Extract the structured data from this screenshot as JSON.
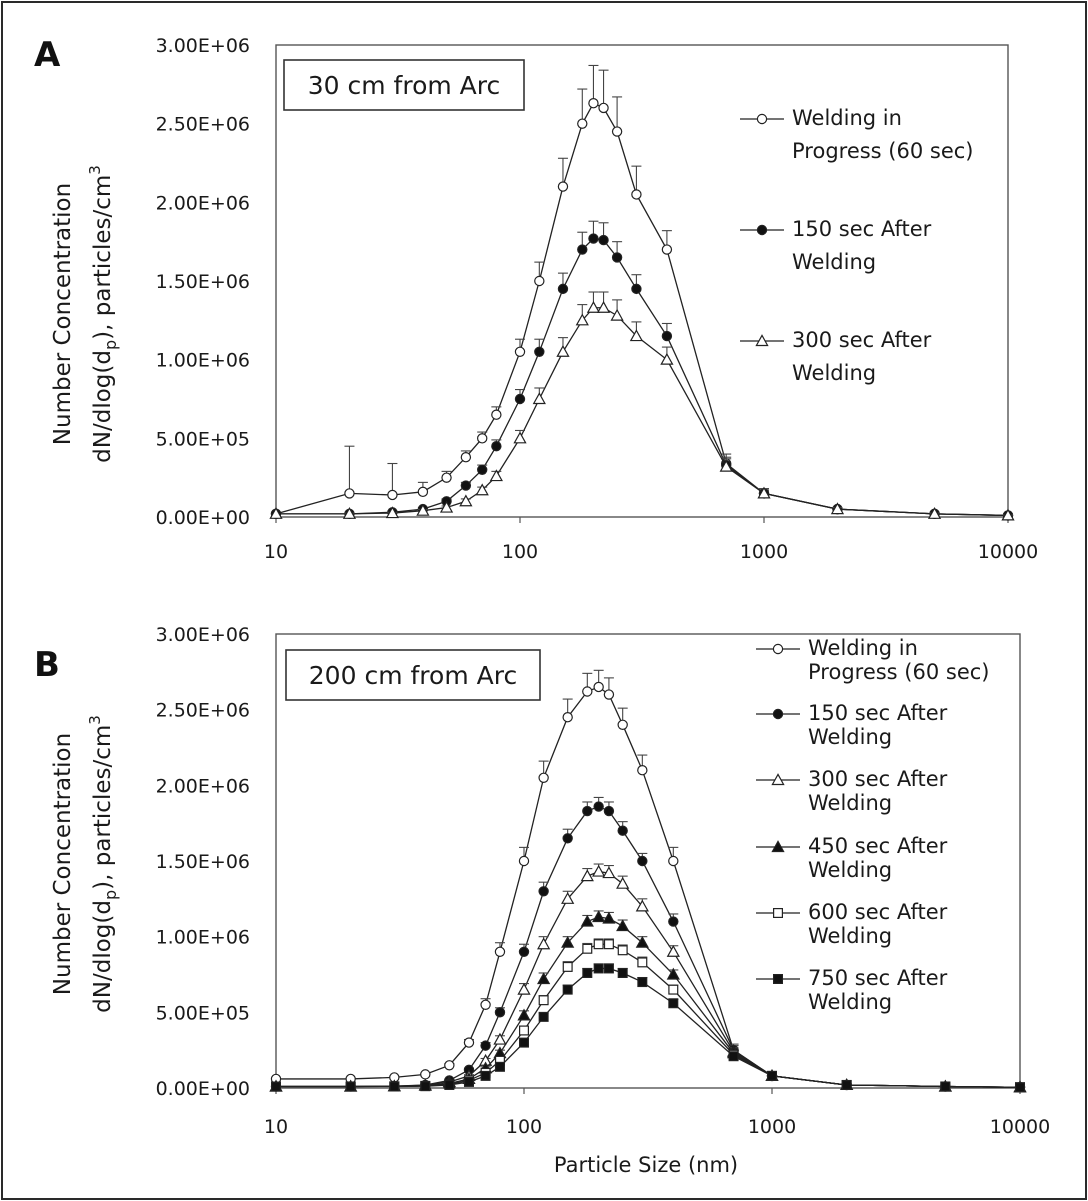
{
  "figure": {
    "panel_a_letter": "A",
    "panel_b_letter": "B",
    "y_axis_title_line1": "Number Concentration",
    "y_axis_title_line2": "dN/dlog(d",
    "y_axis_title_sub": "p",
    "y_axis_title_line2_end": "), particles/cm",
    "y_axis_title_sup": "3",
    "x_axis_title": "Particle Size (nm)"
  },
  "chart_data": [
    {
      "type": "line",
      "panel": "A",
      "annotation": "30 cm from Arc",
      "xscale": "log",
      "xlim": [
        10,
        10000
      ],
      "ylim": [
        0,
        3000000
      ],
      "xticks": [
        "10",
        "100",
        "1000",
        "10000"
      ],
      "yticks": [
        "0.00E+00",
        "5.00E+05",
        "1.00E+06",
        "1.50E+06",
        "2.00E+06",
        "2.50E+06",
        "3.00E+06"
      ],
      "xlabel": "",
      "legend_position": "right",
      "series": [
        {
          "name": "Welding in Progress (60 sec)",
          "marker": "open-circle",
          "x": [
            10,
            20,
            30,
            40,
            50,
            60,
            70,
            80,
            100,
            120,
            150,
            180,
            200,
            220,
            250,
            300,
            400,
            700,
            1000,
            2000,
            5000,
            10000
          ],
          "y": [
            20000,
            150000,
            140000,
            160000,
            250000,
            380000,
            500000,
            650000,
            1050000,
            1500000,
            2100000,
            2500000,
            2630000,
            2600000,
            2450000,
            2050000,
            1700000,
            340000,
            150000,
            50000,
            20000,
            10000
          ],
          "error": [
            0,
            300000,
            200000,
            60000,
            40000,
            40000,
            40000,
            50000,
            80000,
            120000,
            180000,
            220000,
            240000,
            240000,
            220000,
            180000,
            120000,
            60000,
            30000,
            10000,
            5000,
            3000
          ]
        },
        {
          "name": "150 sec After Welding",
          "marker": "filled-circle",
          "x": [
            10,
            20,
            30,
            40,
            50,
            60,
            70,
            80,
            100,
            120,
            150,
            180,
            200,
            220,
            250,
            300,
            400,
            700,
            1000,
            2000,
            5000,
            10000
          ],
          "y": [
            20000,
            20000,
            30000,
            50000,
            100000,
            200000,
            300000,
            450000,
            750000,
            1050000,
            1450000,
            1700000,
            1770000,
            1760000,
            1650000,
            1450000,
            1150000,
            330000,
            150000,
            50000,
            20000,
            10000
          ],
          "error": [
            0,
            5000,
            5000,
            10000,
            15000,
            20000,
            30000,
            40000,
            60000,
            80000,
            100000,
            110000,
            110000,
            110000,
            100000,
            90000,
            80000,
            40000,
            20000,
            8000,
            4000,
            2000
          ]
        },
        {
          "name": "300 sec After Welding",
          "marker": "open-triangle",
          "x": [
            10,
            20,
            30,
            40,
            50,
            60,
            70,
            80,
            100,
            120,
            150,
            180,
            200,
            220,
            250,
            300,
            400,
            700,
            1000,
            2000,
            5000,
            10000
          ],
          "y": [
            20000,
            20000,
            25000,
            40000,
            60000,
            100000,
            170000,
            260000,
            500000,
            750000,
            1050000,
            1250000,
            1330000,
            1330000,
            1280000,
            1150000,
            1000000,
            320000,
            150000,
            50000,
            20000,
            10000
          ],
          "error": [
            0,
            5000,
            5000,
            8000,
            10000,
            15000,
            20000,
            30000,
            50000,
            70000,
            90000,
            100000,
            100000,
            100000,
            100000,
            90000,
            80000,
            60000,
            30000,
            10000,
            5000,
            3000
          ]
        }
      ]
    },
    {
      "type": "line",
      "panel": "B",
      "annotation": "200 cm from Arc",
      "xscale": "log",
      "xlim": [
        10,
        10000
      ],
      "ylim": [
        0,
        3000000
      ],
      "xticks": [
        "10",
        "100",
        "1000",
        "10000"
      ],
      "yticks": [
        "0.00E+00",
        "5.00E+05",
        "1.00E+06",
        "1.50E+06",
        "2.00E+06",
        "2.50E+06",
        "3.00E+06"
      ],
      "xlabel": "Particle Size (nm)",
      "legend_position": "right",
      "series": [
        {
          "name": "Welding in Progress (60 sec)",
          "marker": "open-circle",
          "x": [
            10,
            20,
            30,
            40,
            50,
            60,
            70,
            80,
            100,
            120,
            150,
            180,
            200,
            220,
            250,
            300,
            400,
            700,
            1000,
            2000,
            5000,
            10000
          ],
          "y": [
            60000,
            60000,
            70000,
            90000,
            150000,
            300000,
            550000,
            900000,
            1500000,
            2050000,
            2450000,
            2620000,
            2650000,
            2600000,
            2400000,
            2100000,
            1500000,
            250000,
            80000,
            20000,
            10000,
            5000
          ],
          "error": [
            0,
            2000,
            3000,
            5000,
            10000,
            20000,
            40000,
            60000,
            90000,
            110000,
            120000,
            120000,
            110000,
            110000,
            110000,
            100000,
            90000,
            40000,
            10000,
            5000,
            2000,
            1000
          ]
        },
        {
          "name": "150 sec After Welding",
          "marker": "filled-circle",
          "x": [
            10,
            20,
            30,
            40,
            50,
            60,
            70,
            80,
            100,
            120,
            150,
            180,
            200,
            220,
            250,
            300,
            400,
            700,
            1000,
            2000,
            5000,
            10000
          ],
          "y": [
            10000,
            10000,
            12000,
            20000,
            50000,
            120000,
            280000,
            500000,
            900000,
            1300000,
            1650000,
            1830000,
            1860000,
            1830000,
            1700000,
            1500000,
            1100000,
            250000,
            80000,
            20000,
            10000,
            5000
          ],
          "error": [
            0,
            1000,
            1000,
            2000,
            5000,
            10000,
            20000,
            30000,
            50000,
            60000,
            60000,
            60000,
            60000,
            60000,
            60000,
            50000,
            50000,
            30000,
            10000,
            5000,
            2000,
            1000
          ]
        },
        {
          "name": "300 sec After Welding",
          "marker": "open-triangle",
          "x": [
            10,
            20,
            30,
            40,
            50,
            60,
            70,
            80,
            100,
            120,
            150,
            180,
            200,
            220,
            250,
            300,
            400,
            700,
            1000,
            2000,
            5000,
            10000
          ],
          "y": [
            10000,
            10000,
            12000,
            18000,
            40000,
            80000,
            180000,
            320000,
            650000,
            950000,
            1250000,
            1400000,
            1430000,
            1420000,
            1350000,
            1200000,
            900000,
            240000,
            80000,
            20000,
            10000,
            5000
          ],
          "error": [
            0,
            1000,
            1000,
            2000,
            4000,
            8000,
            15000,
            25000,
            40000,
            50000,
            50000,
            50000,
            50000,
            50000,
            50000,
            50000,
            40000,
            25000,
            10000,
            5000,
            2000,
            1000
          ]
        },
        {
          "name": "450 sec After Welding",
          "marker": "filled-triangle",
          "x": [
            10,
            20,
            30,
            40,
            50,
            60,
            70,
            80,
            100,
            120,
            150,
            180,
            200,
            220,
            250,
            300,
            400,
            700,
            1000,
            2000,
            5000,
            10000
          ],
          "y": [
            10000,
            10000,
            11000,
            15000,
            30000,
            60000,
            130000,
            230000,
            480000,
            720000,
            960000,
            1100000,
            1130000,
            1120000,
            1070000,
            960000,
            750000,
            230000,
            80000,
            20000,
            10000,
            5000
          ],
          "error": [
            0,
            1000,
            1000,
            2000,
            3000,
            6000,
            10000,
            20000,
            30000,
            40000,
            40000,
            40000,
            40000,
            40000,
            40000,
            40000,
            30000,
            20000,
            10000,
            5000,
            2000,
            1000
          ]
        },
        {
          "name": "600 sec After Welding",
          "marker": "open-square",
          "x": [
            10,
            20,
            30,
            40,
            50,
            60,
            70,
            80,
            100,
            120,
            150,
            180,
            200,
            220,
            250,
            300,
            400,
            700,
            1000,
            2000,
            5000,
            10000
          ],
          "y": [
            10000,
            10000,
            11000,
            14000,
            25000,
            50000,
            100000,
            180000,
            380000,
            580000,
            800000,
            920000,
            950000,
            950000,
            910000,
            830000,
            650000,
            220000,
            80000,
            20000,
            10000,
            5000
          ],
          "error": [
            0,
            1000,
            1000,
            2000,
            3000,
            5000,
            8000,
            15000,
            25000,
            30000,
            35000,
            35000,
            35000,
            35000,
            35000,
            35000,
            30000,
            20000,
            10000,
            5000,
            2000,
            1000
          ]
        },
        {
          "name": "750 sec After Welding",
          "marker": "filled-square",
          "x": [
            10,
            20,
            30,
            40,
            50,
            60,
            70,
            80,
            100,
            120,
            150,
            180,
            200,
            220,
            250,
            300,
            400,
            700,
            1000,
            2000,
            5000,
            10000
          ],
          "y": [
            10000,
            10000,
            10000,
            12000,
            20000,
            40000,
            80000,
            140000,
            300000,
            470000,
            650000,
            760000,
            790000,
            790000,
            760000,
            700000,
            560000,
            210000,
            80000,
            20000,
            10000,
            5000
          ],
          "error": [
            0,
            1000,
            1000,
            2000,
            2000,
            4000,
            6000,
            10000,
            20000,
            25000,
            30000,
            30000,
            30000,
            30000,
            30000,
            30000,
            25000,
            15000,
            10000,
            5000,
            2000,
            1000
          ]
        }
      ]
    }
  ]
}
